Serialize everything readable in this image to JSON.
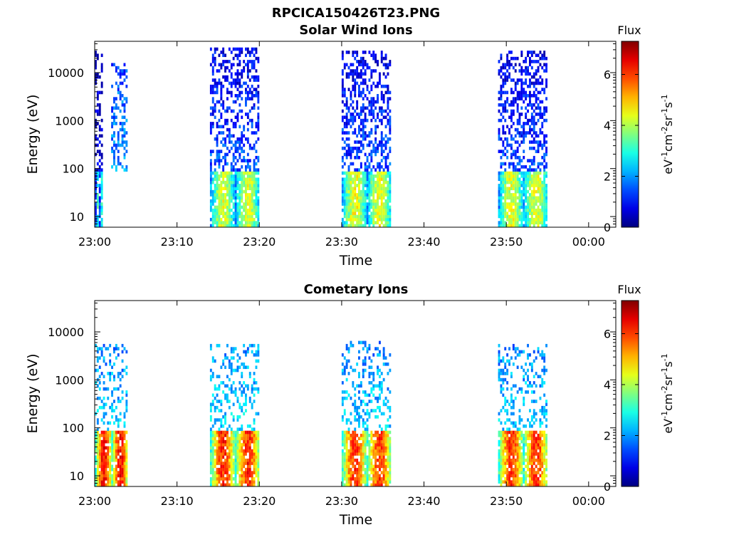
{
  "figure_title": "RPCICA150426T23.PNG",
  "colormap": "jet",
  "chart_data": [
    {
      "type": "heatmap",
      "title": "Solar Wind Ions",
      "xlabel": "Time",
      "ylabel": "Energy (eV)",
      "x_ticks": [
        "23:00",
        "23:10",
        "23:20",
        "23:30",
        "23:40",
        "23:50",
        "00:00"
      ],
      "y_ticks": [
        "10",
        "100",
        "1000",
        "10000"
      ],
      "y_scale": "log",
      "ylim_eV": [
        6,
        45000
      ],
      "colorbar": {
        "title": "Flux",
        "ticks": [
          "0",
          "2",
          "4",
          "6"
        ],
        "range": [
          0,
          7.3
        ]
      },
      "bursts": [
        {
          "t_start": "23:00",
          "t_end": "23:01",
          "low_e_flux_max": 3.6,
          "high_e_flux": 0.8,
          "e_max_eV": 30000
        },
        {
          "t_start": "23:02",
          "t_end": "23:04",
          "low_e_flux_max": 0,
          "high_e_flux": 2.0,
          "e_max_eV": 15000
        },
        {
          "t_start": "23:14",
          "t_end": "23:20",
          "low_e_flux_max": 4.8,
          "high_e_flux": 1.5,
          "e_max_eV": 35000
        },
        {
          "t_start": "23:30",
          "t_end": "23:36",
          "low_e_flux_max": 5.0,
          "high_e_flux": 1.4,
          "e_max_eV": 28000
        },
        {
          "t_start": "23:49",
          "t_end": "23:55",
          "low_e_flux_max": 4.9,
          "high_e_flux": 1.4,
          "e_max_eV": 30000
        }
      ]
    },
    {
      "type": "heatmap",
      "title": "Cometary Ions",
      "xlabel": "Time",
      "ylabel": "Energy (eV)",
      "x_ticks": [
        "23:00",
        "23:10",
        "23:20",
        "23:30",
        "23:40",
        "23:50",
        "00:00"
      ],
      "y_ticks": [
        "10",
        "100",
        "1000",
        "10000"
      ],
      "y_scale": "log",
      "ylim_eV": [
        6,
        45000
      ],
      "colorbar": {
        "title": "Flux",
        "ticks": [
          "0",
          "2",
          "4",
          "6"
        ],
        "range": [
          0,
          7.3
        ]
      },
      "bursts": [
        {
          "t_start": "23:00",
          "t_end": "23:04",
          "low_e_flux_max": 6.9,
          "high_e_flux": 2.4,
          "e_max_eV": 6000
        },
        {
          "t_start": "23:14",
          "t_end": "23:20",
          "low_e_flux_max": 6.7,
          "high_e_flux": 2.5,
          "e_max_eV": 6000
        },
        {
          "t_start": "23:30",
          "t_end": "23:36",
          "low_e_flux_max": 6.6,
          "high_e_flux": 2.4,
          "e_max_eV": 7000
        },
        {
          "t_start": "23:49",
          "t_end": "23:55",
          "low_e_flux_max": 6.6,
          "high_e_flux": 2.4,
          "e_max_eV": 6000
        }
      ]
    }
  ]
}
